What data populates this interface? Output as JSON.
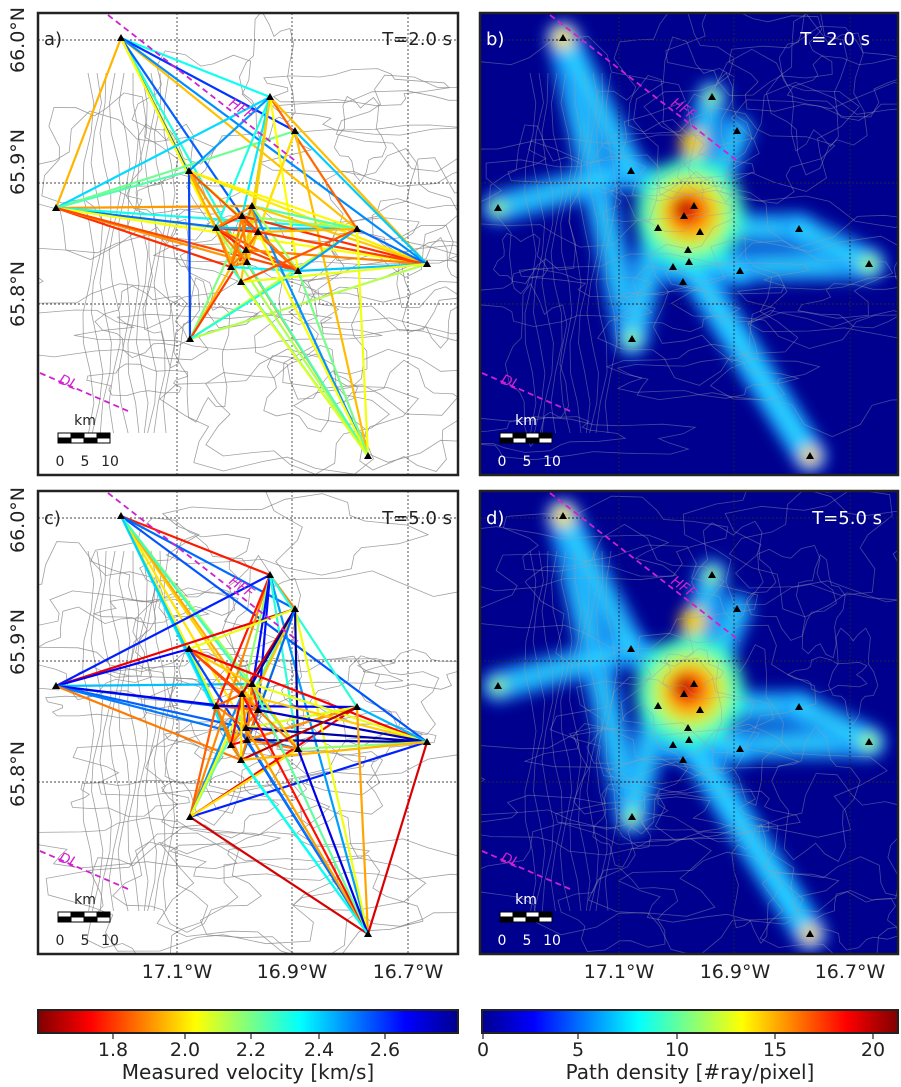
{
  "panels": [
    {
      "id": "a",
      "label": "a)",
      "period": "T=2.0 s",
      "kind": "velocity"
    },
    {
      "id": "b",
      "label": "b)",
      "period": "T=2.0 s",
      "kind": "density"
    },
    {
      "id": "c",
      "label": "c)",
      "period": "T=5.0 s",
      "kind": "velocity"
    },
    {
      "id": "d",
      "label": "d)",
      "period": "T=5.0 s",
      "kind": "density"
    }
  ],
  "lat_ticks": [
    "66.0°N",
    "65.9°N",
    "65.8°N"
  ],
  "lon_ticks": [
    "17.1°W",
    "16.9°W",
    "16.7°W"
  ],
  "fault_labels": [
    "HFF",
    "DL"
  ],
  "scalebar": {
    "unit": "km",
    "ticks": [
      "0",
      "5",
      "10"
    ]
  },
  "colorbar_velocity": {
    "label": "Measured velocity [km/s]",
    "ticks": [
      "1.8",
      "2.0",
      "2.2",
      "2.4",
      "2.6"
    ],
    "cmap": "jet_r"
  },
  "colorbar_density": {
    "label": "Path density [#ray/pixel]",
    "ticks": [
      "0",
      "5",
      "10",
      "15",
      "20"
    ],
    "cmap": "jet"
  },
  "colors": {
    "fault_line": "#d020d0",
    "station": "#000000",
    "graticule": "#444444",
    "contour": "#888888",
    "density_background": "#00008f"
  },
  "icons": {
    "station": "triangle-icon"
  }
}
